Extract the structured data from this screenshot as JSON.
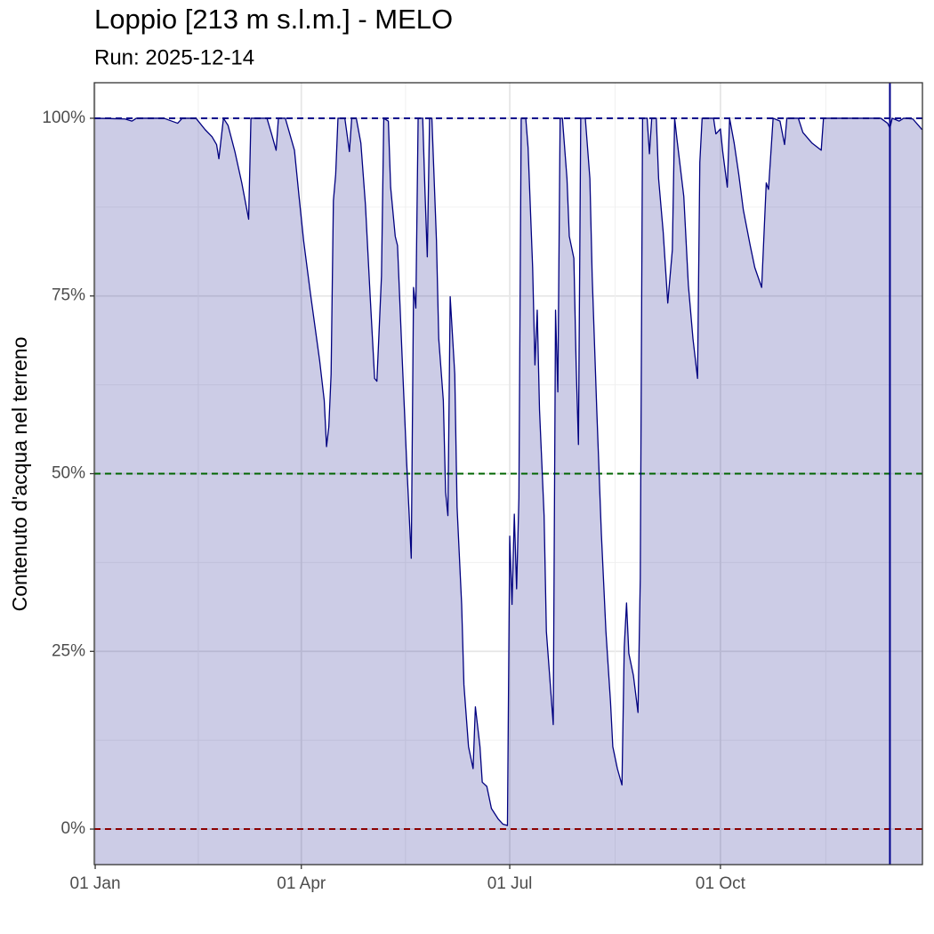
{
  "chart_data": {
    "type": "area",
    "title": "Loppio [213 m s.l.m.] - MELO",
    "subtitle": "Run: 2025-12-14",
    "y_label": "Contenuto d'acqua nel terreno",
    "color": "#000080",
    "fill_opacity": 0.2,
    "grid": true,
    "xlim": [
      "01 Jan",
      "28 Dec"
    ],
    "xticks": [
      "01 Jan",
      "01 Apr",
      "01 Jul",
      "01 Oct"
    ],
    "ylim": [
      -5,
      105
    ],
    "yticks": [
      {
        "value": 0,
        "label": "0%"
      },
      {
        "value": 25,
        "label": "25%"
      },
      {
        "value": 50,
        "label": "50%"
      },
      {
        "value": 75,
        "label": "75%"
      },
      {
        "value": 100,
        "label": "100%"
      }
    ],
    "hlines": [
      {
        "value": 100,
        "color": "#00008b"
      },
      {
        "value": 50,
        "color": "#006400"
      },
      {
        "value": 0,
        "color": "#8b0000"
      }
    ],
    "vline": {
      "x": "14 Dec",
      "color": "#00008b"
    },
    "x": [
      "01 Jan",
      "14 Jan",
      "17 Jan",
      "19 Jan",
      "31 Jan",
      "06 Feb",
      "08 Feb",
      "14 Feb",
      "18 Feb",
      "21 Feb",
      "23 Feb",
      "24 Feb",
      "26 Feb",
      "28 Feb",
      "03 Mar",
      "06 Mar",
      "09 Mar",
      "10 Mar",
      "17 Mar",
      "19 Mar",
      "21 Mar",
      "22 Mar",
      "25 Mar",
      "29 Mar",
      "31 Mar",
      "02 Apr",
      "05 Apr",
      "09 Apr",
      "11 Apr",
      "12 Apr",
      "13 Apr",
      "14 Apr",
      "15 Apr",
      "16 Apr",
      "17 Apr",
      "20 Apr",
      "22 Apr",
      "23 Apr",
      "25 Apr",
      "27 Apr",
      "29 Apr",
      "01 May",
      "03 May",
      "04 May",
      "06 May",
      "07 May",
      "09 May",
      "10 May",
      "12 May",
      "13 May",
      "15 May",
      "17 May",
      "19 May",
      "20 May",
      "21 May",
      "22 May",
      "24 May",
      "25 May",
      "26 May",
      "27 May",
      "28 May",
      "30 May",
      "31 May",
      "02 Jun",
      "03 Jun",
      "04 Jun",
      "05 Jun",
      "07 Jun",
      "08 Jun",
      "10 Jun",
      "11 Jun",
      "13 Jun",
      "15 Jun",
      "16 Jun",
      "18 Jun",
      "19 Jun",
      "21 Jun",
      "23 Jun",
      "26 Jun",
      "28 Jun",
      "30 Jun",
      "01 Jul",
      "02 Jul",
      "03 Jul",
      "04 Jul",
      "05 Jul",
      "06 Jul",
      "08 Jul",
      "09 Jul",
      "11 Jul",
      "12 Jul",
      "13 Jul",
      "14 Jul",
      "16 Jul",
      "17 Jul",
      "20 Jul",
      "21 Jul",
      "22 Jul",
      "23 Jul",
      "24 Jul",
      "26 Jul",
      "27 Jul",
      "29 Jul",
      "30 Jul",
      "31 Jul",
      "01 Aug",
      "03 Aug",
      "05 Aug",
      "06 Aug",
      "08 Aug",
      "10 Aug",
      "12 Aug",
      "14 Aug",
      "15 Aug",
      "17 Aug",
      "19 Aug",
      "20 Aug",
      "21 Aug",
      "22 Aug",
      "24 Aug",
      "26 Aug",
      "27 Aug",
      "28 Aug",
      "30 Aug",
      "31 Aug",
      "01 Sep",
      "03 Sep",
      "04 Sep",
      "06 Sep",
      "08 Sep",
      "10 Sep",
      "11 Sep",
      "12 Sep",
      "15 Sep",
      "17 Sep",
      "19 Sep",
      "21 Sep",
      "22 Sep",
      "23 Sep",
      "28 Sep",
      "29 Sep",
      "01 Oct",
      "02 Oct",
      "04 Oct",
      "05 Oct",
      "07 Oct",
      "09 Oct",
      "11 Oct",
      "14 Oct",
      "16 Oct",
      "19 Oct",
      "21 Oct",
      "22 Oct",
      "24 Oct",
      "27 Oct",
      "29 Oct",
      "30 Oct",
      "04 Nov",
      "06 Nov",
      "10 Nov",
      "14 Nov",
      "15 Nov",
      "10 Dec",
      "13 Dec",
      "14 Dec",
      "15 Dec",
      "18 Dec",
      "20 Dec",
      "24 Dec",
      "27 Dec",
      "28 Dec"
    ],
    "values": [
      100,
      99.9,
      99.6,
      100,
      100,
      99.3,
      100,
      100,
      98.4,
      97.4,
      96.3,
      94.3,
      100,
      99,
      95.3,
      90.9,
      85.8,
      100,
      100,
      97.8,
      95.5,
      100,
      100,
      95.5,
      89,
      82.8,
      75.3,
      65.9,
      60.3,
      53.8,
      56.6,
      64,
      88.4,
      92.1,
      100,
      100,
      95.3,
      100,
      100,
      96.5,
      87.8,
      75.3,
      63.4,
      63,
      77.8,
      100,
      99.6,
      90.3,
      83.4,
      82.1,
      66.5,
      51.6,
      38.1,
      76.2,
      73.3,
      100,
      100,
      89.6,
      80.5,
      100,
      100,
      82.8,
      69,
      60.3,
      47.4,
      44.1,
      74.9,
      64,
      45.3,
      31.6,
      20.3,
      11.6,
      8.5,
      17.2,
      11.6,
      6.6,
      6,
      2.9,
      1.4,
      0.7,
      0.5,
      41.2,
      31.6,
      44.3,
      33.8,
      46.6,
      100,
      100,
      95.9,
      79,
      65.3,
      73,
      59,
      44.1,
      27.8,
      14.7,
      73,
      61.5,
      100,
      100,
      91.5,
      83.4,
      80.3,
      65.3,
      54.1,
      100,
      100,
      91.5,
      77.8,
      59,
      41.6,
      27.8,
      17.9,
      11.6,
      8.5,
      6.2,
      25.6,
      31.8,
      24.7,
      21.6,
      16.4,
      35.3,
      100,
      100,
      95,
      100,
      100,
      91.5,
      84,
      74,
      81.5,
      100,
      97.1,
      89,
      76.5,
      69,
      63.4,
      93.8,
      100,
      100,
      97.8,
      98.5,
      95.3,
      90.3,
      100,
      96.5,
      92.1,
      87.1,
      82.1,
      79,
      76.2,
      90.9,
      90,
      100,
      99.6,
      96.3,
      100,
      100,
      98,
      96.5,
      95.5,
      100,
      100,
      99.3,
      98.6,
      100,
      99.6,
      100,
      99.9,
      98.8,
      98.4
    ]
  }
}
